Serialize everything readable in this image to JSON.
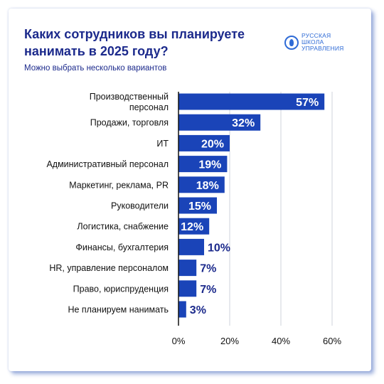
{
  "header": {
    "title": "Каких сотрудников вы планируете нанимать в 2025 году?",
    "subtitle": "Можно выбрать несколько вариантов"
  },
  "logo": {
    "icon": "shield-emblem-icon",
    "lines": [
      "РУССКАЯ",
      "ШКОЛА",
      "УПРАВЛЕНИЯ"
    ]
  },
  "colors": {
    "bar": "#1a44b8",
    "title": "#1c2a8c",
    "accent": "#2f6bd6"
  },
  "chart_data": {
    "type": "bar",
    "orientation": "horizontal",
    "title": "Каких сотрудников вы планируете нанимать в 2025 году?",
    "subtitle": "Можно выбрать несколько вариантов",
    "categories": [
      [
        "Производственный",
        "персонал"
      ],
      [
        "Продажи, торговля"
      ],
      [
        "ИТ"
      ],
      [
        "Административный персонал"
      ],
      [
        "Маркетинг, реклама, PR"
      ],
      [
        "Руководители"
      ],
      [
        "Логистика, снабжение"
      ],
      [
        "Финансы, бухгалтерия"
      ],
      [
        "HR, управление персоналом"
      ],
      [
        "Право, юриспруденция"
      ],
      [
        "Не планируем нанимать"
      ]
    ],
    "values": [
      57,
      32,
      20,
      19,
      18,
      15,
      12,
      10,
      7,
      7,
      3
    ],
    "value_labels": [
      "57%",
      "32%",
      "20%",
      "19%",
      "18%",
      "15%",
      "12%",
      "10%",
      "7%",
      "7%",
      "3%"
    ],
    "xlim": [
      0,
      60
    ],
    "xticks": [
      0,
      20,
      40,
      60
    ],
    "xtick_labels": [
      "0%",
      "20%",
      "40%",
      "60%"
    ],
    "grid": "vertical"
  }
}
